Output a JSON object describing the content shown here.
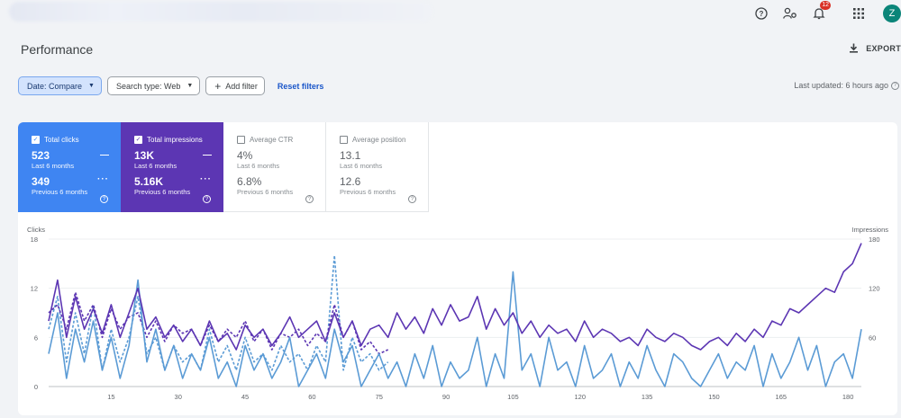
{
  "topbar": {
    "icons": [
      "help-icon",
      "manage-users-icon",
      "notifications-icon",
      "apps-grid-icon"
    ],
    "notification_count": "12",
    "avatar_letter": "Z"
  },
  "page": {
    "title": "Performance",
    "export_label": "EXPORT"
  },
  "filters": {
    "date": "Date: Compare",
    "search_type": "Search type: Web",
    "add_filter": "Add filter",
    "reset": "Reset filters",
    "last_updated": "Last updated: 6 hours ago"
  },
  "metrics": [
    {
      "label": "Total clicks",
      "checked": true,
      "value": "523",
      "period": "Last 6 months",
      "prev_value": "349",
      "prev_period": "Previous 6 months",
      "color": "#3f85f2"
    },
    {
      "label": "Total impressions",
      "checked": true,
      "value": "13K",
      "period": "Last 6 months",
      "prev_value": "5.16K",
      "prev_period": "Previous 6 months",
      "color": "#5c36b3"
    },
    {
      "label": "Average CTR",
      "checked": false,
      "value": "4%",
      "period": "Last 6 months",
      "prev_value": "6.8%",
      "prev_period": "Previous 6 months"
    },
    {
      "label": "Average position",
      "checked": false,
      "value": "13.1",
      "period": "Last 6 months",
      "prev_value": "12.6",
      "prev_period": "Previous 6 months"
    }
  ],
  "chart_data": {
    "type": "line",
    "ylabel_left": "Clicks",
    "ylabel_right": "Impressions",
    "ylim_left": [
      0,
      18
    ],
    "ylim_right": [
      0,
      180
    ],
    "yticks_left": [
      "18",
      "12",
      "6",
      "0"
    ],
    "yticks_right": [
      "180",
      "120",
      "60",
      ""
    ],
    "xlim": [
      1,
      183
    ],
    "xticks": [
      "15",
      "30",
      "45",
      "60",
      "75",
      "90",
      "105",
      "120",
      "135",
      "150",
      "165",
      "180"
    ],
    "grid": true,
    "series": [
      {
        "id": "clicks",
        "axis": "left",
        "color": "#5b9bd5",
        "dash": false,
        "x": [
          1,
          3,
          5,
          7,
          9,
          11,
          13,
          15,
          17,
          19,
          21,
          23,
          25,
          27,
          29,
          31,
          33,
          35,
          37,
          39,
          41,
          43,
          45,
          47,
          49,
          51,
          53,
          55,
          57,
          59,
          61,
          63,
          65,
          67,
          69,
          71,
          73,
          75,
          77,
          79,
          81,
          83,
          85,
          87,
          89,
          91,
          93,
          95,
          97,
          99,
          101,
          103,
          105,
          107,
          109,
          111,
          113,
          115,
          117,
          119,
          121,
          123,
          125,
          127,
          129,
          131,
          133,
          135,
          137,
          139,
          141,
          143,
          145,
          147,
          149,
          151,
          153,
          155,
          157,
          159,
          161,
          163,
          165,
          167,
          169,
          171,
          173,
          175,
          177,
          179,
          181,
          183
        ],
        "values": [
          4,
          9,
          1,
          7,
          3,
          8,
          2,
          6,
          1,
          5,
          13,
          3,
          7,
          2,
          5,
          1,
          4,
          2,
          6,
          1,
          3,
          0,
          5,
          2,
          4,
          1,
          3,
          6,
          0,
          2,
          4,
          1,
          7,
          3,
          5,
          0,
          2,
          4,
          1,
          3,
          0,
          4,
          1,
          5,
          0,
          3,
          1,
          2,
          6,
          0,
          4,
          1,
          14,
          2,
          4,
          0,
          6,
          2,
          3,
          0,
          5,
          1,
          2,
          4,
          0,
          3,
          1,
          5,
          2,
          0,
          4,
          3,
          1,
          0,
          2,
          4,
          1,
          3,
          2,
          5,
          0,
          4,
          1,
          3,
          6,
          2,
          5,
          0,
          3,
          4,
          1,
          7
        ]
      },
      {
        "id": "impressions",
        "axis": "right",
        "color": "#5c36b3",
        "dash": false,
        "x": [
          1,
          3,
          5,
          7,
          9,
          11,
          13,
          15,
          17,
          19,
          21,
          23,
          25,
          27,
          29,
          31,
          33,
          35,
          37,
          39,
          41,
          43,
          45,
          47,
          49,
          51,
          53,
          55,
          57,
          59,
          61,
          63,
          65,
          67,
          69,
          71,
          73,
          75,
          77,
          79,
          81,
          83,
          85,
          87,
          89,
          91,
          93,
          95,
          97,
          99,
          101,
          103,
          105,
          107,
          109,
          111,
          113,
          115,
          117,
          119,
          121,
          123,
          125,
          127,
          129,
          131,
          133,
          135,
          137,
          139,
          141,
          143,
          145,
          147,
          149,
          151,
          153,
          155,
          157,
          159,
          161,
          163,
          165,
          167,
          169,
          171,
          173,
          175,
          177,
          179,
          181,
          183
        ],
        "values": [
          80,
          130,
          60,
          110,
          70,
          95,
          65,
          100,
          60,
          90,
          120,
          70,
          85,
          60,
          75,
          55,
          70,
          50,
          80,
          55,
          65,
          45,
          75,
          60,
          70,
          50,
          65,
          85,
          60,
          70,
          80,
          55,
          90,
          60,
          80,
          50,
          70,
          75,
          60,
          90,
          70,
          85,
          65,
          95,
          75,
          100,
          80,
          85,
          110,
          70,
          95,
          75,
          90,
          65,
          80,
          60,
          75,
          65,
          70,
          55,
          80,
          60,
          70,
          65,
          55,
          60,
          50,
          70,
          60,
          55,
          65,
          60,
          50,
          45,
          55,
          60,
          50,
          65,
          55,
          70,
          60,
          80,
          75,
          95,
          90,
          100,
          110,
          120,
          115,
          140,
          150,
          175
        ]
      },
      {
        "id": "clicks_prev",
        "axis": "left",
        "color": "#5b9bd5",
        "dash": true,
        "x": [
          1,
          3,
          5,
          7,
          9,
          11,
          13,
          15,
          17,
          19,
          21,
          23,
          25,
          27,
          29,
          31,
          33,
          35,
          37,
          39,
          41,
          43,
          45,
          47,
          49,
          51,
          53,
          55,
          57,
          59,
          61,
          63,
          65,
          67,
          69,
          71,
          73,
          75,
          77
        ],
        "values": [
          7,
          11,
          3,
          9,
          4,
          10,
          2,
          7,
          3,
          6,
          11,
          4,
          6,
          2,
          5,
          3,
          4,
          2,
          7,
          3,
          5,
          2,
          6,
          3,
          4,
          2,
          5,
          3,
          4,
          2,
          5,
          3,
          16,
          2,
          6,
          3,
          4,
          2,
          3
        ]
      },
      {
        "id": "impressions_prev",
        "axis": "right",
        "color": "#5c36b3",
        "dash": true,
        "x": [
          1,
          3,
          5,
          7,
          9,
          11,
          13,
          15,
          17,
          19,
          21,
          23,
          25,
          27,
          29,
          31,
          33,
          35,
          37,
          39,
          41,
          43,
          45,
          47,
          49,
          51,
          53,
          55,
          57,
          59,
          61,
          63,
          65,
          67,
          69,
          71,
          73,
          75,
          77
        ],
        "values": [
          90,
          100,
          70,
          115,
          80,
          100,
          60,
          95,
          70,
          85,
          90,
          60,
          80,
          55,
          75,
          65,
          70,
          50,
          75,
          55,
          70,
          60,
          80,
          55,
          70,
          45,
          65,
          60,
          70,
          50,
          65,
          55,
          100,
          60,
          80,
          45,
          55,
          40,
          45
        ]
      }
    ]
  }
}
